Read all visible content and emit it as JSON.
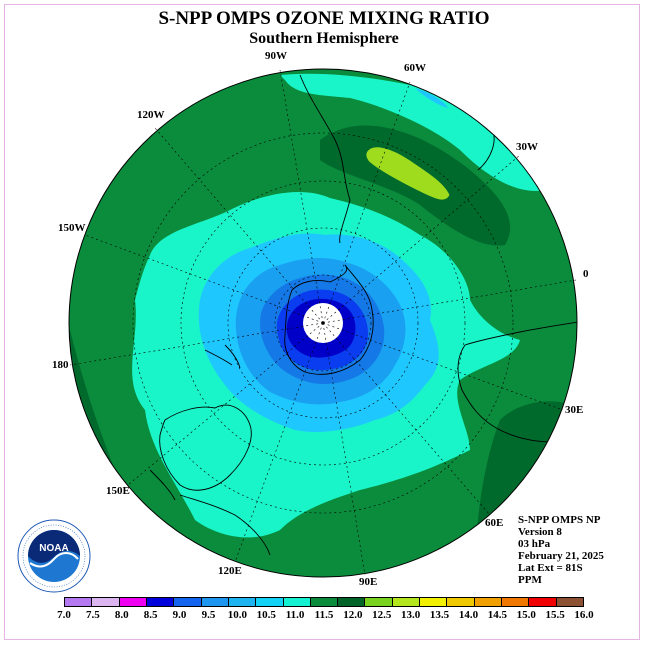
{
  "header": {
    "title": "S-NPP OMPS OZONE MIXING RATIO",
    "subtitle": "Southern Hemisphere"
  },
  "map": {
    "projection": "south-polar-stereographic",
    "longitude_labels": [
      "90W",
      "60W",
      "30W",
      "0",
      "30E",
      "60E",
      "90E",
      "120E",
      "150E",
      "180",
      "150W",
      "120W"
    ],
    "colors": {
      "ocean_field": "#0a8c3c",
      "dark_field": "#006a2c",
      "cyan_ring": "#19f5c8",
      "light_blue": "#1ec8ff",
      "mid_blue": "#1aa0f0",
      "blue": "#1478e6",
      "deep_blue": "#0a3cf0",
      "navy": "#0000c8",
      "lime_patch": "#a0dc1e",
      "pole_fill": "#ffffff"
    }
  },
  "info": {
    "line1": "S-NPP OMPS NP",
    "line2": "Version 8",
    "line3": "03 hPa",
    "line4": "February 21, 2025",
    "line5": "Lat Ext = 81S",
    "line6": "PPM"
  },
  "colorbar": {
    "ticks": [
      "7.0",
      "7.5",
      "8.0",
      "8.5",
      "9.0",
      "9.5",
      "10.0",
      "10.5",
      "11.0",
      "11.5",
      "12.0",
      "12.5",
      "13.0",
      "13.5",
      "14.0",
      "14.5",
      "15.0",
      "15.5",
      "16.0"
    ],
    "colors": [
      "#b478f0",
      "#dcb4f0",
      "#f000f0",
      "#0000dc",
      "#1464f0",
      "#1e96f0",
      "#1eb4f0",
      "#14d2f5",
      "#14f0d2",
      "#0a8c3c",
      "#006428",
      "#78d21e",
      "#b4e61e",
      "#f0f000",
      "#f0c800",
      "#f0a000",
      "#f07800",
      "#f00000",
      "#8c5032"
    ]
  },
  "logo": {
    "text": "NOAA",
    "ring_text": "NATIONAL OCEANIC AND ATMOSPHERIC ADMINISTRATION - U.S. DEPARTMENT OF COMMERCE"
  }
}
